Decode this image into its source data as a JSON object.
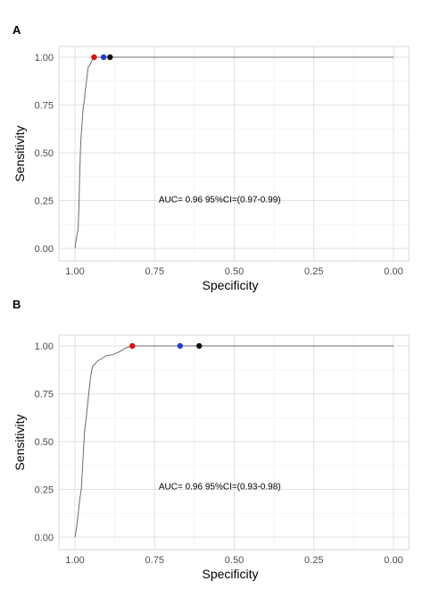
{
  "colors": {
    "red": "#e01010",
    "blue": "#1f3fd0",
    "black": "#111111",
    "curve": "#6b6b6b"
  },
  "chart_data": [
    {
      "panel": "A",
      "type": "line",
      "xlabel": "Specificity",
      "ylabel": "Sensitivity",
      "xlim": [
        1.0,
        0.0
      ],
      "ylim": [
        0.0,
        1.0
      ],
      "x_reversed": true,
      "x_ticks": [
        "1.00",
        "0.75",
        "0.50",
        "0.25",
        "0.00"
      ],
      "y_ticks": [
        "0.00",
        "0.25",
        "0.50",
        "0.75",
        "1.00"
      ],
      "grid": true,
      "annotation": "AUC= 0.96 95%CI=(0.97-0.99)",
      "annotation_at": [
        0.68,
        0.24
      ],
      "curve": {
        "specificity": [
          1.0,
          0.995,
          0.99,
          0.988,
          0.985,
          0.982,
          0.978,
          0.975,
          0.97,
          0.968,
          0.965,
          0.962,
          0.96,
          0.958,
          0.955,
          0.95,
          0.945,
          0.94,
          0.935,
          0.93,
          0.92,
          0.9,
          0.8,
          0.6,
          0.4,
          0.2,
          0.0
        ],
        "sensitivity": [
          0.0,
          0.06,
          0.1,
          0.2,
          0.4,
          0.55,
          0.65,
          0.72,
          0.78,
          0.82,
          0.86,
          0.9,
          0.93,
          0.95,
          0.955,
          0.97,
          0.99,
          1.0,
          1.0,
          1.0,
          1.0,
          1.0,
          1.0,
          1.0,
          1.0,
          1.0,
          1.0
        ]
      },
      "points": [
        {
          "color": "red",
          "specificity": 0.94,
          "sensitivity": 1.0
        },
        {
          "color": "blue",
          "specificity": 0.91,
          "sensitivity": 1.0
        },
        {
          "color": "black",
          "specificity": 0.89,
          "sensitivity": 1.0
        }
      ]
    },
    {
      "panel": "B",
      "type": "line",
      "xlabel": "Specificity",
      "ylabel": "Sensitivity",
      "xlim": [
        1.0,
        0.0
      ],
      "ylim": [
        0.0,
        1.0
      ],
      "x_reversed": true,
      "x_ticks": [
        "1.00",
        "0.75",
        "0.50",
        "0.25",
        "0.00"
      ],
      "y_ticks": [
        "0.00",
        "0.25",
        "0.50",
        "0.75",
        "1.00"
      ],
      "grid": true,
      "annotation": "AUC= 0.96 95%CI=(0.93-0.98)",
      "annotation_at": [
        0.68,
        0.25
      ],
      "curve": {
        "specificity": [
          1.0,
          0.995,
          0.99,
          0.985,
          0.98,
          0.975,
          0.97,
          0.965,
          0.96,
          0.955,
          0.95,
          0.945,
          0.94,
          0.93,
          0.9,
          0.88,
          0.86,
          0.84,
          0.82,
          0.8,
          0.7,
          0.6,
          0.4,
          0.2,
          0.0
        ],
        "sensitivity": [
          0.0,
          0.05,
          0.12,
          0.2,
          0.25,
          0.4,
          0.55,
          0.62,
          0.7,
          0.78,
          0.85,
          0.89,
          0.9,
          0.92,
          0.95,
          0.955,
          0.97,
          0.99,
          1.0,
          1.0,
          1.0,
          1.0,
          1.0,
          1.0,
          1.0
        ]
      },
      "points": [
        {
          "color": "red",
          "specificity": 0.82,
          "sensitivity": 1.0
        },
        {
          "color": "blue",
          "specificity": 0.67,
          "sensitivity": 1.0
        },
        {
          "color": "black",
          "specificity": 0.61,
          "sensitivity": 1.0
        }
      ]
    }
  ]
}
